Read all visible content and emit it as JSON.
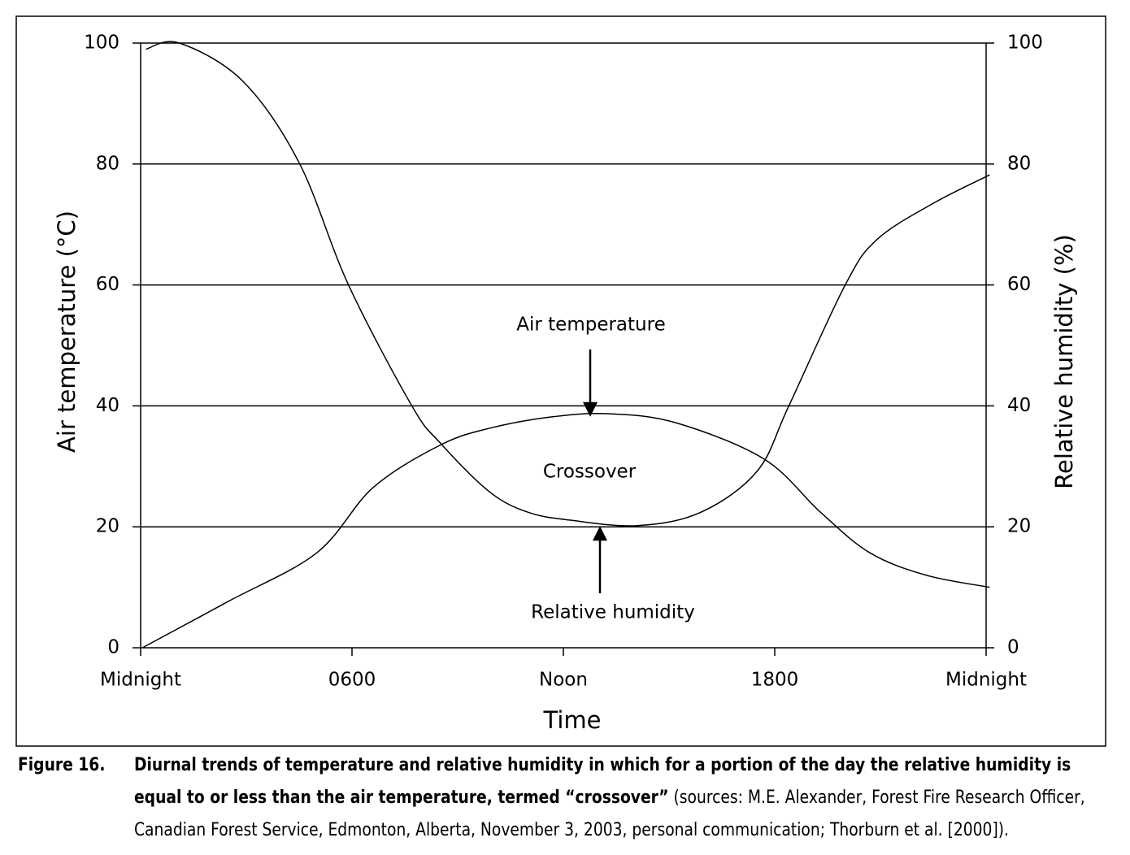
{
  "chart_data": {
    "type": "line",
    "x_label": "Time",
    "y_label": "Air temperature (°C)",
    "y2_label": "Relative humidity (%)",
    "xlim": [
      0,
      24
    ],
    "xticks": [
      {
        "value": 0,
        "label": "Midnight"
      },
      {
        "value": 6,
        "label": "0600"
      },
      {
        "value": 12,
        "label": "Noon"
      },
      {
        "value": 18,
        "label": "1800"
      },
      {
        "value": 24,
        "label": "Midnight"
      }
    ],
    "ylim": [
      0,
      100
    ],
    "yticks": [
      0,
      20,
      40,
      60,
      80,
      100
    ],
    "y2lim": [
      0,
      100
    ],
    "y2ticks": [
      0,
      20,
      40,
      60,
      80,
      100
    ],
    "grid": true,
    "series": [
      {
        "name": "Air temperature",
        "color": "#000000",
        "axis": "y",
        "x": [
          0.05,
          2.5,
          5,
          6.6,
          8.5,
          9.9,
          11.7,
          13.3,
          15.2,
          17.7,
          19.3,
          20.7,
          22.3,
          24.1
        ],
        "values": [
          0,
          7.7,
          15.7,
          26.5,
          33.5,
          36.3,
          38.2,
          38.7,
          37.2,
          31.2,
          22.4,
          15.7,
          12,
          10
        ]
      },
      {
        "name": "Relative humidity",
        "color": "#000000",
        "axis": "y2",
        "x": [
          0.15,
          1.1,
          2.9,
          4.5,
          5.9,
          7.7,
          8.5,
          9.9,
          11,
          12.2,
          14.1,
          15.9,
          17.5,
          18.4,
          20,
          20.9,
          22.5,
          24.1
        ],
        "values": [
          99,
          100,
          93.7,
          80.2,
          60,
          40,
          33.9,
          25.8,
          22.4,
          21.1,
          20.2,
          22.4,
          29.2,
          40,
          60,
          67.5,
          73.5,
          78.2
        ]
      }
    ],
    "annotations": [
      "Crossover"
    ]
  },
  "caption": {
    "label": "Figure 16.",
    "bold": "Diurnal trends of temperature and relative humidity in which for a portion of the day the relative humidity is equal to or less than the air temperature, termed “crossover”",
    "text": " (sources: M.E. Alexander, Forest Fire Research Officer, Canadian Forest Service, Edmonton, Alberta, November 3, 2003, personal communication; Thorburn et al. [2000])."
  }
}
